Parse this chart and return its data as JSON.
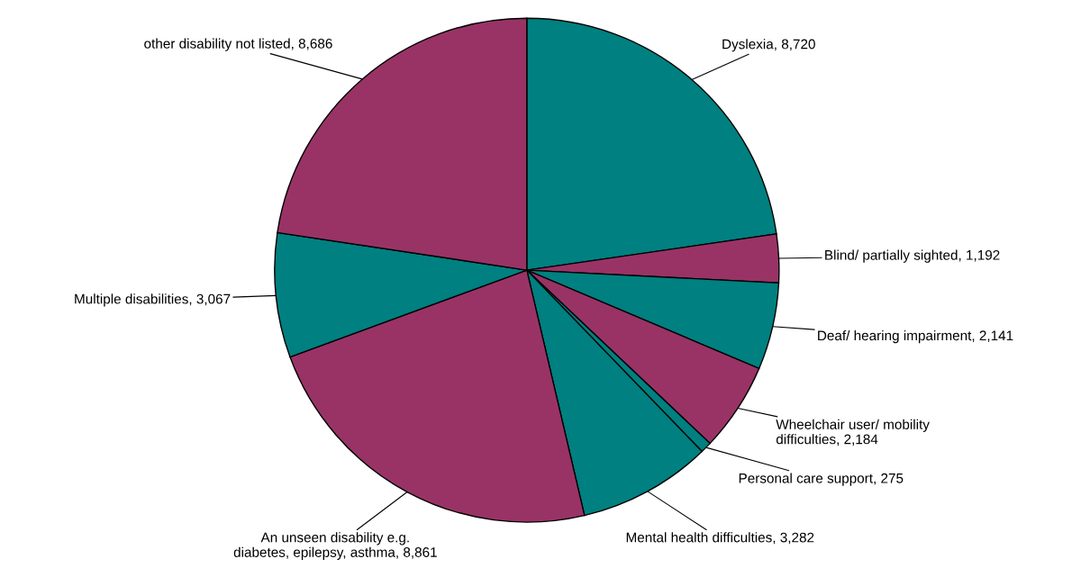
{
  "chart_data": {
    "type": "pie",
    "categories": [
      "Dyslexia",
      "Blind/ partially sighted",
      "Deaf/ hearing impairment",
      "Wheelchair user/ mobility\ndifficulties",
      "Personal care support",
      "Mental health difficulties",
      "An unseen disability e.g.\ndiabetes, epilepsy, asthma",
      "Multiple disabilities",
      "other disability not listed"
    ],
    "values": [
      8720,
      1192,
      2141,
      2184,
      275,
      3282,
      8861,
      3067,
      8686
    ],
    "value_labels": [
      "8,720",
      "1,192",
      "2,141",
      "2,184",
      "275",
      "3,282",
      "8,861",
      "3,067",
      "8,686"
    ],
    "colors": [
      "#008080",
      "#993366",
      "#008080",
      "#993366",
      "#008080",
      "#008080",
      "#993366",
      "#008080",
      "#993366"
    ],
    "legend": false
  }
}
